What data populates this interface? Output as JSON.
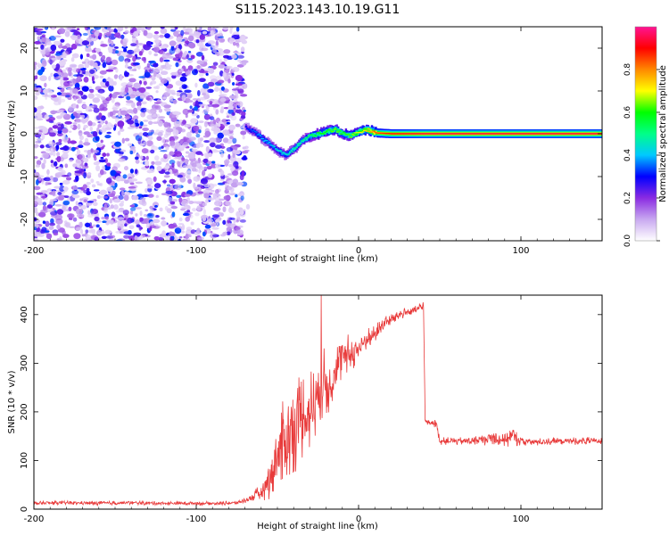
{
  "title": "S115.2023.143.10.19.G11",
  "chart_data": [
    {
      "type": "heatmap",
      "xlabel": "Height of straight line (km)",
      "ylabel": "Frequency (Hz)",
      "xlim": [
        -200,
        150
      ],
      "ylim": [
        -25,
        25
      ],
      "xticks": [
        -200,
        -100,
        0,
        100
      ],
      "yticks": [
        -20,
        -10,
        0,
        10,
        20
      ],
      "colorbar": {
        "label": "Normalized spectral amplitude",
        "range": [
          0,
          1
        ],
        "ticks": [
          0.0,
          0.2,
          0.4,
          0.6,
          0.8
        ],
        "tick_labels": [
          "0.0",
          "0.2",
          "0.4",
          "0.6",
          "0.8"
        ],
        "colors": [
          "#ffffff",
          "#c8a8f0",
          "#8a2be2",
          "#0000ff",
          "#00c8ff",
          "#00ff88",
          "#00ff00",
          "#ffff00",
          "#ff8800",
          "#ff0000",
          "#ff1493"
        ]
      },
      "noise_region_x": [
        -200,
        -70
      ],
      "noise_level_max": 0.3,
      "signal_track": {
        "x": [
          -70,
          -65,
          -60,
          -55,
          -50,
          -45,
          -40,
          -35,
          -30,
          -25,
          -20,
          -15,
          -10,
          -5,
          0,
          5,
          10,
          20,
          40,
          60,
          80,
          100,
          120,
          150
        ],
        "y": [
          1.5,
          0.5,
          -1.0,
          -2.5,
          -4.0,
          -5.0,
          -3.5,
          -1.5,
          -0.5,
          0.0,
          0.5,
          1.0,
          0.0,
          -0.5,
          0.5,
          1.0,
          0.2,
          0.0,
          0.0,
          0.0,
          0.0,
          0.0,
          0.0,
          0.0
        ],
        "amplitude": [
          0.3,
          0.35,
          0.4,
          0.4,
          0.45,
          0.45,
          0.5,
          0.5,
          0.55,
          0.6,
          0.6,
          0.65,
          0.6,
          0.65,
          0.7,
          0.75,
          0.85,
          0.9,
          0.95,
          0.95,
          0.95,
          0.95,
          0.95,
          0.95
        ]
      }
    },
    {
      "type": "line",
      "xlabel": "Height of straight line (km)",
      "ylabel": "SNR (10 * v/v)",
      "xlim": [
        -200,
        150
      ],
      "ylim": [
        0,
        440
      ],
      "xticks": [
        -200,
        -100,
        0,
        100
      ],
      "yticks": [
        0,
        100,
        200,
        300,
        400
      ],
      "color": "#e83a3a",
      "x": [
        -200,
        -180,
        -160,
        -140,
        -120,
        -100,
        -85,
        -75,
        -70,
        -65,
        -60,
        -55,
        -50,
        -45,
        -40,
        -35,
        -30,
        -25,
        -22,
        -20,
        -15,
        -10,
        -5,
        0,
        5,
        10,
        15,
        20,
        25,
        30,
        35,
        39,
        40,
        41,
        45,
        48,
        50,
        60,
        70,
        80,
        90,
        95,
        100,
        110,
        120,
        130,
        140,
        150
      ],
      "y": [
        12,
        13,
        12,
        13,
        12,
        12,
        12,
        13,
        18,
        25,
        35,
        60,
        110,
        140,
        170,
        190,
        200,
        240,
        260,
        250,
        280,
        310,
        320,
        330,
        350,
        360,
        380,
        390,
        400,
        405,
        410,
        415,
        420,
        180,
        178,
        175,
        140,
        140,
        140,
        145,
        145,
        150,
        140,
        138,
        140,
        140,
        140,
        140
      ],
      "noise": [
        4,
        4,
        4,
        4,
        4,
        4,
        4,
        4,
        6,
        10,
        20,
        40,
        80,
        110,
        100,
        100,
        90,
        80,
        80,
        70,
        60,
        50,
        40,
        30,
        25,
        20,
        15,
        12,
        12,
        10,
        10,
        10,
        10,
        8,
        8,
        8,
        8,
        8,
        8,
        15,
        20,
        20,
        10,
        8,
        8,
        8,
        8,
        8
      ],
      "spike": {
        "x": -23,
        "y": 440
      }
    }
  ]
}
